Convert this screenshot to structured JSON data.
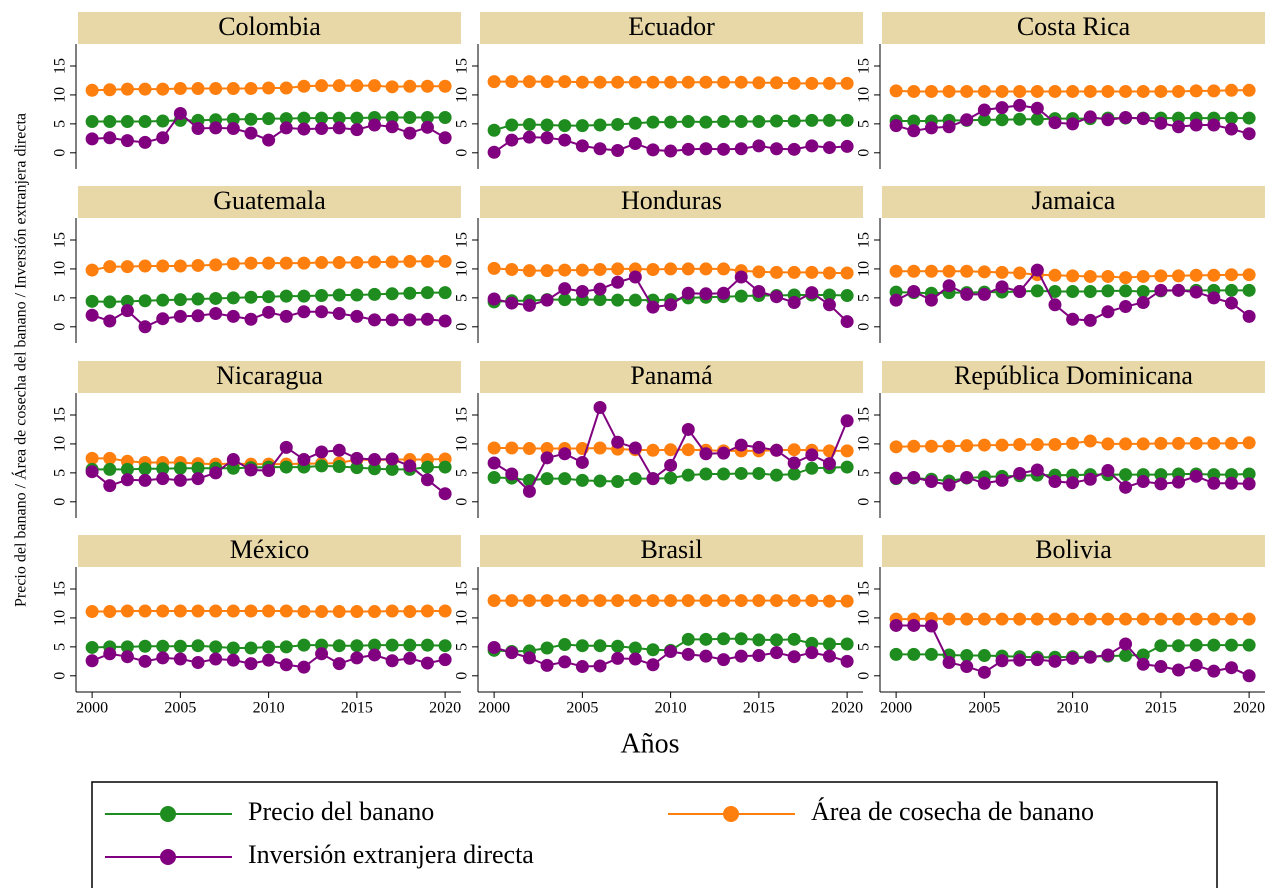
{
  "chart_data": {
    "type": "line",
    "ylabel": "Precio del banano / Área de cosecha del banano / Inversión extranjera directa",
    "xlabel": "Años",
    "x": [
      2000,
      2001,
      2002,
      2003,
      2004,
      2005,
      2006,
      2007,
      2008,
      2009,
      2010,
      2011,
      2012,
      2013,
      2014,
      2015,
      2016,
      2017,
      2018,
      2019,
      2020
    ],
    "xlim": [
      1999.2,
      2020.9
    ],
    "xticks": [
      2000,
      2005,
      2010,
      2015,
      2020
    ],
    "ylim": [
      -2.8,
      18.8
    ],
    "yticks": [
      0,
      5,
      10,
      15
    ],
    "grid": false,
    "series": [
      {
        "name": "Precio del banano",
        "color": "#1e8c1e"
      },
      {
        "name": "Área de cosecha de banano",
        "color": "#ff7f0e"
      },
      {
        "name": "Inversión extranjera directa",
        "color": "#800080"
      }
    ],
    "panels": [
      {
        "title": "Colombia",
        "series": [
          {
            "values": [
              5.4,
              5.4,
              5.4,
              5.4,
              5.5,
              5.6,
              5.6,
              5.7,
              5.8,
              5.8,
              5.9,
              5.9,
              6,
              6,
              6,
              6,
              6.1,
              6.1,
              6.1,
              6.1,
              6.1
            ]
          },
          {
            "values": [
              10.8,
              10.9,
              11,
              11,
              11,
              11.1,
              11.1,
              11.1,
              11.1,
              11.1,
              11.2,
              11.2,
              11.5,
              11.6,
              11.6,
              11.6,
              11.6,
              11.4,
              11.5,
              11.5,
              11.5
            ]
          },
          {
            "values": [
              2.4,
              2.6,
              2.1,
              1.8,
              2.6,
              6.8,
              4.2,
              4.3,
              4.2,
              3.4,
              2.2,
              4.3,
              4.1,
              4.2,
              4.3,
              4,
              4.8,
              4.5,
              3.4,
              4.4,
              2.6
            ]
          }
        ]
      },
      {
        "title": "Ecuador",
        "series": [
          {
            "values": [
              3.9,
              4.8,
              4.9,
              4.8,
              4.7,
              4.7,
              4.8,
              4.9,
              5.1,
              5.3,
              5.3,
              5.4,
              5.3,
              5.4,
              5.4,
              5.4,
              5.5,
              5.5,
              5.6,
              5.6,
              5.6
            ]
          },
          {
            "values": [
              12.3,
              12.3,
              12.3,
              12.3,
              12.3,
              12.2,
              12.2,
              12.2,
              12.2,
              12.2,
              12.2,
              12.2,
              12.2,
              12.2,
              12.2,
              12.1,
              12.1,
              12,
              12,
              12,
              12
            ]
          },
          {
            "values": [
              0.1,
              2.2,
              2.7,
              2.6,
              2.2,
              1.2,
              0.7,
              0.4,
              1.6,
              0.5,
              0.3,
              0.6,
              0.7,
              0.6,
              0.7,
              1.2,
              0.7,
              0.6,
              1.2,
              0.9,
              1.1
            ]
          }
        ]
      },
      {
        "title": "Costa Rica",
        "series": [
          {
            "values": [
              5.5,
              5.5,
              5.5,
              5.6,
              5.6,
              5.7,
              5.7,
              5.8,
              5.8,
              5.9,
              5.9,
              5.9,
              6,
              6,
              6,
              6,
              6,
              6,
              6,
              6,
              6
            ]
          },
          {
            "values": [
              10.7,
              10.6,
              10.6,
              10.6,
              10.6,
              10.6,
              10.6,
              10.6,
              10.6,
              10.6,
              10.6,
              10.6,
              10.6,
              10.6,
              10.6,
              10.6,
              10.6,
              10.7,
              10.7,
              10.8,
              10.8
            ]
          },
          {
            "values": [
              4.7,
              3.8,
              4.3,
              4.5,
              5.7,
              7.4,
              7.8,
              8.2,
              7.7,
              5.2,
              5,
              6.2,
              5.7,
              6.1,
              5.9,
              5.1,
              4.5,
              4.8,
              4.8,
              4.1,
              3.3
            ]
          }
        ]
      },
      {
        "title": "Guatemala",
        "series": [
          {
            "values": [
              4.4,
              4.3,
              4.4,
              4.5,
              4.6,
              4.7,
              4.8,
              4.9,
              5,
              5.1,
              5.2,
              5.3,
              5.3,
              5.4,
              5.5,
              5.5,
              5.6,
              5.7,
              5.8,
              5.9,
              5.9
            ]
          },
          {
            "values": [
              9.8,
              10.4,
              10.4,
              10.5,
              10.5,
              10.5,
              10.6,
              10.7,
              10.9,
              11,
              11,
              11,
              11,
              11.1,
              11.1,
              11.1,
              11.2,
              11.2,
              11.3,
              11.3,
              11.3
            ]
          },
          {
            "values": [
              2,
              1,
              2.8,
              0,
              1.4,
              1.8,
              1.9,
              2.3,
              1.8,
              1.3,
              2.5,
              1.8,
              2.6,
              2.6,
              2.3,
              1.8,
              1.2,
              1.2,
              1.2,
              1.3,
              1
            ]
          }
        ]
      },
      {
        "title": "Honduras",
        "series": [
          {
            "values": [
              4.3,
              4.5,
              4.5,
              4.7,
              4.7,
              4.7,
              4.7,
              4.6,
              4.6,
              4.6,
              4.7,
              5,
              5.1,
              5.2,
              5.3,
              5.4,
              5.4,
              5.5,
              5.5,
              5.5,
              5.4
            ]
          },
          {
            "values": [
              10.1,
              9.9,
              9.7,
              9.7,
              9.8,
              9.8,
              9.9,
              10,
              10,
              9.9,
              10,
              10,
              10,
              10,
              9.7,
              9.5,
              9.4,
              9.4,
              9.4,
              9.3,
              9.3
            ]
          },
          {
            "values": [
              4.8,
              4.1,
              3.7,
              4.6,
              6.6,
              6.1,
              6.5,
              7.7,
              8.6,
              3.4,
              3.8,
              5.8,
              5.7,
              5.8,
              8.6,
              6.1,
              5.2,
              4.2,
              5.9,
              3.8,
              0.9
            ]
          }
        ]
      },
      {
        "title": "Jamaica",
        "series": [
          {
            "values": [
              6,
              5.9,
              5.8,
              5.9,
              5.9,
              6,
              6,
              6.1,
              6.2,
              6.1,
              6.1,
              6.1,
              6.2,
              6.2,
              6.1,
              6.2,
              6.3,
              6.3,
              6.3,
              6.3,
              6.3
            ]
          },
          {
            "values": [
              9.6,
              9.6,
              9.6,
              9.6,
              9.6,
              9.5,
              9.4,
              9.3,
              9,
              8.9,
              8.8,
              8.7,
              8.7,
              8.5,
              8.7,
              8.8,
              8.8,
              8.9,
              8.9,
              9,
              9
            ]
          },
          {
            "values": [
              4.6,
              6.1,
              4.6,
              7.1,
              5.6,
              5.6,
              6.9,
              6.1,
              9.8,
              3.8,
              1.3,
              1.1,
              2.6,
              3.5,
              4.2,
              6.3,
              6.3,
              6,
              5,
              4.1,
              1.8
            ]
          }
        ]
      },
      {
        "title": "Nicaragua",
        "series": [
          {
            "values": [
              5.6,
              5.6,
              5.6,
              5.7,
              5.7,
              5.8,
              5.8,
              5.8,
              5.8,
              5.9,
              6,
              6,
              6,
              6.2,
              6.1,
              5.9,
              5.7,
              5.6,
              5.6,
              6,
              6
            ]
          },
          {
            "values": [
              7.5,
              7.5,
              7,
              6.8,
              6.8,
              6.8,
              6.6,
              6.5,
              6.6,
              6.5,
              6.5,
              6.5,
              6.6,
              6.6,
              6.7,
              7.3,
              7.2,
              7.3,
              7.3,
              7.3,
              7.4
            ]
          },
          {
            "values": [
              5.2,
              2.8,
              3.8,
              3.7,
              4,
              3.7,
              4,
              5,
              7.3,
              5.5,
              5.4,
              9.4,
              7.3,
              8.6,
              8.9,
              7.5,
              7.3,
              7.4,
              6.2,
              3.8,
              1.4
            ]
          }
        ]
      },
      {
        "title": "Panamá",
        "series": [
          {
            "values": [
              4.2,
              4.1,
              3.7,
              4,
              4,
              3.7,
              3.6,
              3.5,
              4,
              4,
              4.1,
              4.6,
              4.8,
              4.8,
              4.9,
              4.9,
              4.6,
              4.8,
              5.8,
              5.9,
              6
            ]
          },
          {
            "values": [
              9.3,
              9.3,
              9.2,
              9.2,
              9.2,
              9.2,
              9.3,
              9.1,
              9,
              8.9,
              9,
              9,
              8.9,
              8.8,
              8.8,
              8.8,
              8.9,
              9,
              8.9,
              8.8,
              8.8
            ]
          },
          {
            "values": [
              6.7,
              4.8,
              1.8,
              7.6,
              8.3,
              6.8,
              16.3,
              10.3,
              9.3,
              4,
              6.3,
              12.5,
              8.3,
              8.4,
              9.8,
              9.4,
              8.9,
              6.7,
              8.1,
              6.6,
              14
            ]
          }
        ]
      },
      {
        "title": "República Dominicana",
        "series": [
          {
            "values": [
              4,
              4.1,
              3.9,
              3.6,
              4.1,
              4.3,
              4.4,
              4.5,
              4.6,
              4.6,
              4.6,
              4.7,
              4.7,
              4.7,
              4.7,
              4.7,
              4.8,
              4.8,
              4.7,
              4.7,
              4.8
            ]
          },
          {
            "values": [
              9.5,
              9.6,
              9.6,
              9.6,
              9.7,
              9.8,
              9.8,
              9.9,
              9.9,
              9.9,
              10.1,
              10.5,
              10,
              10,
              10,
              10.1,
              10.1,
              10.1,
              10.1,
              10.1,
              10.2
            ]
          },
          {
            "values": [
              4.1,
              4.2,
              3.5,
              2.9,
              4.2,
              3.2,
              3.7,
              4.9,
              5.5,
              3.5,
              3.3,
              3.9,
              5.4,
              2.5,
              3.5,
              3.1,
              3.4,
              4.4,
              3.2,
              3.2,
              3.1
            ]
          }
        ]
      },
      {
        "title": "México",
        "series": [
          {
            "values": [
              4.9,
              5,
              5,
              5.1,
              5.1,
              5.1,
              5.2,
              5,
              4.8,
              4.8,
              5,
              5,
              5.3,
              5.3,
              5.2,
              5.2,
              5.3,
              5.3,
              5.3,
              5.3,
              5.2
            ]
          },
          {
            "values": [
              11.1,
              11.1,
              11.2,
              11.2,
              11.2,
              11.2,
              11.2,
              11.2,
              11.2,
              11.2,
              11.2,
              11.2,
              11.1,
              11.1,
              11.1,
              11.1,
              11.1,
              11.2,
              11.1,
              11.2,
              11.2
            ]
          },
          {
            "values": [
              2.6,
              3.8,
              3.3,
              2.5,
              3.1,
              2.9,
              2.3,
              2.9,
              2.7,
              2.1,
              2.7,
              1.9,
              1.5,
              3.8,
              2.1,
              3.1,
              3.6,
              2.6,
              3,
              2.2,
              2.8
            ]
          }
        ]
      },
      {
        "title": "Brasil",
        "series": [
          {
            "values": [
              4.4,
              4.2,
              4.3,
              4.8,
              5.4,
              5.2,
              5.2,
              5.1,
              4.8,
              4.5,
              4.4,
              6.3,
              6.3,
              6.4,
              6.4,
              6.2,
              6.2,
              6.3,
              5.6,
              5.5,
              5.5
            ]
          },
          {
            "values": [
              13,
              13,
              13,
              13,
              13,
              13,
              13,
              13,
              13,
              13,
              13,
              13,
              13,
              13,
              13,
              13,
              13,
              13,
              13,
              12.9,
              12.9
            ]
          },
          {
            "values": [
              4.9,
              4,
              3.1,
              1.8,
              2.4,
              1.6,
              1.7,
              3,
              2.9,
              1.9,
              4.2,
              3.7,
              3.4,
              2.8,
              3.4,
              3.5,
              4,
              3.3,
              4,
              3.4,
              2.5
            ]
          }
        ]
      },
      {
        "title": "Bolivia",
        "series": [
          {
            "values": [
              3.7,
              3.7,
              3.7,
              3.6,
              3.5,
              3.5,
              3.4,
              3.3,
              3.2,
              3.2,
              3.3,
              3.3,
              3.4,
              3.5,
              3.6,
              5.2,
              5.2,
              5.3,
              5.3,
              5.3,
              5.3
            ]
          },
          {
            "values": [
              9.8,
              9.8,
              9.9,
              9.8,
              9.8,
              9.8,
              9.8,
              9.8,
              9.8,
              9.8,
              9.8,
              9.8,
              9.8,
              9.8,
              9.8,
              9.8,
              9.8,
              9.8,
              9.8,
              9.8,
              9.8
            ]
          },
          {
            "values": [
              8.7,
              8.7,
              8.6,
              2.3,
              1.6,
              0.6,
              2.6,
              2.7,
              2.8,
              2.5,
              3,
              3.2,
              3.6,
              5.5,
              2,
              1.6,
              1,
              1.8,
              0.8,
              1.4,
              0
            ]
          }
        ]
      }
    ]
  }
}
